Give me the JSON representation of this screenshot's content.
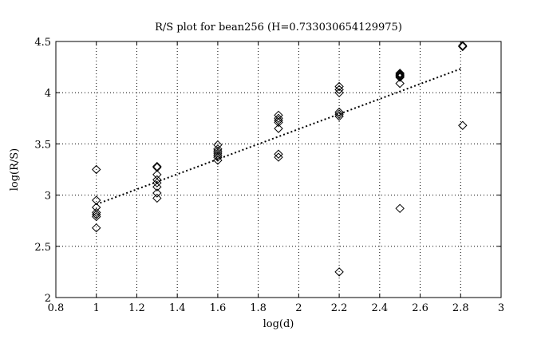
{
  "chart_data": {
    "type": "scatter",
    "title": "R/S plot for bean256 (H=0.733030654129975)",
    "xlabel": "log(d)",
    "ylabel": "log(R/S)",
    "xlim": [
      0.8,
      3
    ],
    "ylim": [
      2,
      4.5
    ],
    "xticks": [
      "0.8",
      "1",
      "1.2",
      "1.4",
      "1.6",
      "1.8",
      "2",
      "2.2",
      "2.4",
      "2.6",
      "2.8",
      "3"
    ],
    "yticks": [
      "2",
      "2.5",
      "3",
      "3.5",
      "4",
      "4.5"
    ],
    "grid": true,
    "marker": "diamond",
    "series": [
      {
        "points": [
          [
            1.0,
            3.25
          ],
          [
            1.0,
            2.95
          ],
          [
            1.0,
            2.88
          ],
          [
            1.0,
            2.83
          ],
          [
            1.0,
            2.81
          ],
          [
            1.0,
            2.79
          ],
          [
            1.0,
            2.68
          ],
          [
            1.3,
            3.28
          ],
          [
            1.3,
            3.27
          ],
          [
            1.3,
            3.2
          ],
          [
            1.3,
            3.15
          ],
          [
            1.3,
            3.12
          ],
          [
            1.3,
            3.08
          ],
          [
            1.3,
            3.02
          ],
          [
            1.3,
            2.97
          ],
          [
            1.6,
            3.49
          ],
          [
            1.6,
            3.45
          ],
          [
            1.6,
            3.43
          ],
          [
            1.6,
            3.41
          ],
          [
            1.6,
            3.39
          ],
          [
            1.6,
            3.37
          ],
          [
            1.6,
            3.34
          ],
          [
            1.9,
            3.78
          ],
          [
            1.9,
            3.75
          ],
          [
            1.9,
            3.73
          ],
          [
            1.9,
            3.71
          ],
          [
            1.9,
            3.65
          ],
          [
            1.9,
            3.4
          ],
          [
            1.9,
            3.37
          ],
          [
            2.2,
            4.06
          ],
          [
            2.2,
            4.03
          ],
          [
            2.2,
            4.0
          ],
          [
            2.2,
            3.81
          ],
          [
            2.2,
            3.79
          ],
          [
            2.2,
            3.77
          ],
          [
            2.2,
            2.25
          ],
          [
            2.5,
            4.19
          ],
          [
            2.5,
            4.18
          ],
          [
            2.5,
            4.17
          ],
          [
            2.5,
            4.16
          ],
          [
            2.5,
            4.15
          ],
          [
            2.5,
            4.09
          ],
          [
            2.5,
            2.87
          ],
          [
            2.81,
            4.46
          ],
          [
            2.81,
            4.45
          ],
          [
            2.81,
            3.68
          ]
        ]
      }
    ],
    "fit_line": {
      "x": [
        1.0,
        2.81
      ],
      "y": [
        2.91,
        4.24
      ]
    }
  }
}
